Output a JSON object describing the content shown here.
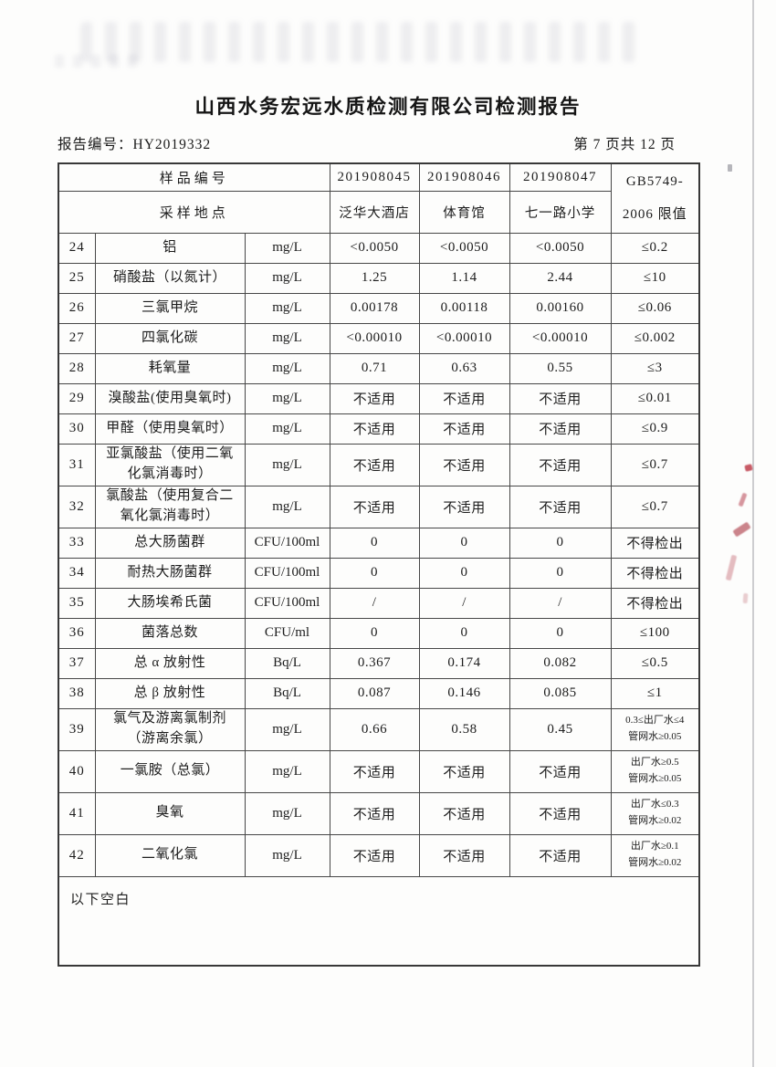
{
  "page": {
    "title": "山西水务宏远水质检测有限公司检测报告",
    "report_no_label": "报告编号：",
    "report_no": "HY2019332",
    "page_info": "第 7 页共 12 页"
  },
  "table": {
    "header": {
      "sample_no_label": "样品编号",
      "location_label": "采样地点",
      "sample_ids": [
        "201908045",
        "201908046",
        "201908047"
      ],
      "locations": [
        "泛华大酒店",
        "体育馆",
        "七一路小学"
      ],
      "limit_header": "GB5749-\n2006 限值"
    },
    "rows": [
      {
        "no": "24",
        "name": "铝",
        "unit": "mg/L",
        "v1": "<0.0050",
        "v2": "<0.0050",
        "v3": "<0.0050",
        "limit": "≤0.2"
      },
      {
        "no": "25",
        "name": "硝酸盐（以氮计）",
        "unit": "mg/L",
        "v1": "1.25",
        "v2": "1.14",
        "v3": "2.44",
        "limit": "≤10"
      },
      {
        "no": "26",
        "name": "三氯甲烷",
        "unit": "mg/L",
        "v1": "0.00178",
        "v2": "0.00118",
        "v3": "0.00160",
        "limit": "≤0.06"
      },
      {
        "no": "27",
        "name": "四氯化碳",
        "unit": "mg/L",
        "v1": "<0.00010",
        "v2": "<0.00010",
        "v3": "<0.00010",
        "limit": "≤0.002"
      },
      {
        "no": "28",
        "name": "耗氧量",
        "unit": "mg/L",
        "v1": "0.71",
        "v2": "0.63",
        "v3": "0.55",
        "limit": "≤3"
      },
      {
        "no": "29",
        "name": "溴酸盐(使用臭氧时)",
        "unit": "mg/L",
        "v1": "不适用",
        "v2": "不适用",
        "v3": "不适用",
        "limit": "≤0.01"
      },
      {
        "no": "30",
        "name": "甲醛（使用臭氧时）",
        "unit": "mg/L",
        "v1": "不适用",
        "v2": "不适用",
        "v3": "不适用",
        "limit": "≤0.9"
      },
      {
        "no": "31",
        "name": "亚氯酸盐（使用二氧\n化氯消毒时）",
        "unit": "mg/L",
        "v1": "不适用",
        "v2": "不适用",
        "v3": "不适用",
        "limit": "≤0.7"
      },
      {
        "no": "32",
        "name": "氯酸盐（使用复合二\n氧化氯消毒时）",
        "unit": "mg/L",
        "v1": "不适用",
        "v2": "不适用",
        "v3": "不适用",
        "limit": "≤0.7"
      },
      {
        "no": "33",
        "name": "总大肠菌群",
        "unit": "CFU/100ml",
        "v1": "0",
        "v2": "0",
        "v3": "0",
        "limit": "不得检出"
      },
      {
        "no": "34",
        "name": "耐热大肠菌群",
        "unit": "CFU/100ml",
        "v1": "0",
        "v2": "0",
        "v3": "0",
        "limit": "不得检出"
      },
      {
        "no": "35",
        "name": "大肠埃希氏菌",
        "unit": "CFU/100ml",
        "v1": "/",
        "v2": "/",
        "v3": "/",
        "limit": "不得检出"
      },
      {
        "no": "36",
        "name": "菌落总数",
        "unit": "CFU/ml",
        "v1": "0",
        "v2": "0",
        "v3": "0",
        "limit": "≤100"
      },
      {
        "no": "37",
        "name": "总 α 放射性",
        "unit": "Bq/L",
        "v1": "0.367",
        "v2": "0.174",
        "v3": "0.082",
        "limit": "≤0.5"
      },
      {
        "no": "38",
        "name": "总 β 放射性",
        "unit": "Bq/L",
        "v1": "0.087",
        "v2": "0.146",
        "v3": "0.085",
        "limit": "≤1"
      },
      {
        "no": "39",
        "name": "氯气及游离氯制剂\n（游离余氯）",
        "unit": "mg/L",
        "v1": "0.66",
        "v2": "0.58",
        "v3": "0.45",
        "limit": "0.3≤出厂水≤4\n管网水≥0.05"
      },
      {
        "no": "40",
        "name": "一氯胺（总氯）",
        "unit": "mg/L",
        "v1": "不适用",
        "v2": "不适用",
        "v3": "不适用",
        "limit": "出厂水≥0.5\n管网水≥0.05"
      },
      {
        "no": "41",
        "name": "臭氧",
        "unit": "mg/L",
        "v1": "不适用",
        "v2": "不适用",
        "v3": "不适用",
        "limit": "出厂水≤0.3\n管网水≥0.02"
      },
      {
        "no": "42",
        "name": "二氧化氯",
        "unit": "mg/L",
        "v1": "不适用",
        "v2": "不适用",
        "v3": "不适用",
        "limit": "出厂水≥0.1\n管网水≥0.02"
      }
    ],
    "footer_note": "以下空白"
  }
}
